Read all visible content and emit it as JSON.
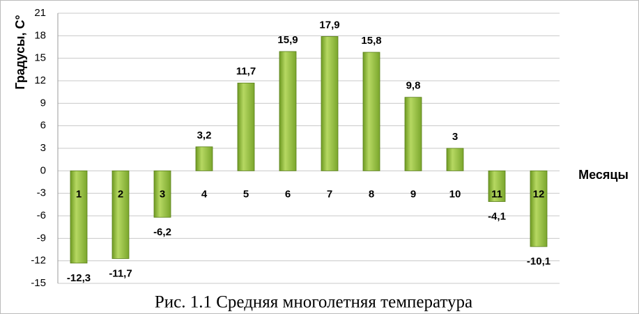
{
  "chart_data": {
    "type": "bar",
    "title": "Рис. 1.1 Средняя многолетняя температура",
    "y_label": "Градусы, С°",
    "x_label": "Месяцы",
    "categories": [
      "1",
      "2",
      "3",
      "4",
      "5",
      "6",
      "7",
      "8",
      "9",
      "10",
      "11",
      "12"
    ],
    "values": [
      -12.3,
      -11.7,
      -6.2,
      3.2,
      11.7,
      15.9,
      17.9,
      15.8,
      9.8,
      3,
      -4.1,
      -10.1
    ],
    "value_labels": [
      "-12,3",
      "-11,7",
      "-6,2",
      "3,2",
      "11,7",
      "15,9",
      "17,9",
      "15,8",
      "9,8",
      "3",
      "-4,1",
      "-10,1"
    ],
    "color": "#8fb83a",
    "ylim": [
      -15,
      21
    ],
    "yticks": [
      -15,
      -12,
      -9,
      -6,
      -3,
      0,
      3,
      6,
      9,
      12,
      15,
      18,
      21
    ],
    "grid": true
  }
}
